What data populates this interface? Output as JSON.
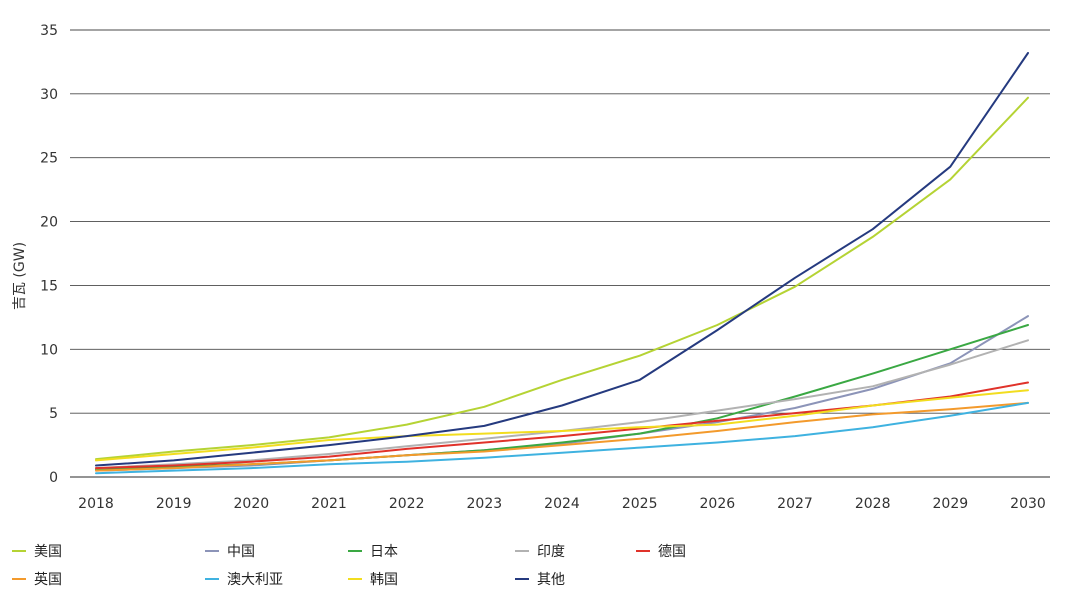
{
  "chart_data": {
    "type": "line",
    "title": "",
    "xlabel": "",
    "ylabel": "吉瓦 (GW)",
    "x": [
      2018,
      2019,
      2020,
      2021,
      2022,
      2023,
      2024,
      2025,
      2026,
      2027,
      2028,
      2029,
      2030
    ],
    "ylim": [
      0,
      35
    ],
    "yticks": [
      0,
      5,
      10,
      15,
      20,
      25,
      30,
      35
    ],
    "grid": "horizontal",
    "legend_position": "bottom",
    "series": [
      {
        "name": "美国",
        "color": "#b5d334",
        "values": [
          1.4,
          2.0,
          2.5,
          3.1,
          4.1,
          5.5,
          7.6,
          9.5,
          11.9,
          14.9,
          18.8,
          23.3,
          29.7
        ]
      },
      {
        "name": "中国",
        "color": "#8c94b8",
        "values": [
          0.5,
          0.7,
          0.9,
          1.3,
          1.7,
          2.1,
          2.6,
          3.4,
          4.3,
          5.4,
          6.9,
          8.9,
          12.6
        ]
      },
      {
        "name": "日本",
        "color": "#3aa843",
        "values": [
          0.6,
          0.8,
          1.0,
          1.3,
          1.7,
          2.1,
          2.7,
          3.4,
          4.6,
          6.3,
          8.1,
          10.0,
          11.9
        ]
      },
      {
        "name": "印度",
        "color": "#b2b2b2",
        "values": [
          0.7,
          1.0,
          1.3,
          1.8,
          2.4,
          3.0,
          3.6,
          4.3,
          5.2,
          6.1,
          7.1,
          8.8,
          10.7
        ]
      },
      {
        "name": "德国",
        "color": "#e0322a",
        "values": [
          0.7,
          0.9,
          1.2,
          1.6,
          2.2,
          2.7,
          3.2,
          3.8,
          4.4,
          5.0,
          5.6,
          6.3,
          7.4
        ]
      },
      {
        "name": "英国",
        "color": "#f39a2c",
        "values": [
          0.5,
          0.7,
          1.0,
          1.3,
          1.7,
          2.0,
          2.5,
          3.0,
          3.6,
          4.3,
          4.9,
          5.3,
          5.8
        ]
      },
      {
        "name": "澳大利亚",
        "color": "#3fb2e0",
        "values": [
          0.3,
          0.5,
          0.7,
          1.0,
          1.2,
          1.5,
          1.9,
          2.3,
          2.7,
          3.2,
          3.9,
          4.8,
          5.8
        ]
      },
      {
        "name": "韩国",
        "color": "#f2dd1f",
        "values": [
          1.3,
          1.8,
          2.3,
          2.9,
          3.2,
          3.4,
          3.6,
          3.9,
          4.1,
          4.8,
          5.6,
          6.2,
          6.8
        ]
      },
      {
        "name": "其他",
        "color": "#253a7f",
        "values": [
          0.9,
          1.3,
          1.9,
          2.5,
          3.2,
          4.0,
          5.6,
          7.6,
          11.5,
          15.6,
          19.4,
          24.3,
          33.2
        ]
      }
    ]
  }
}
